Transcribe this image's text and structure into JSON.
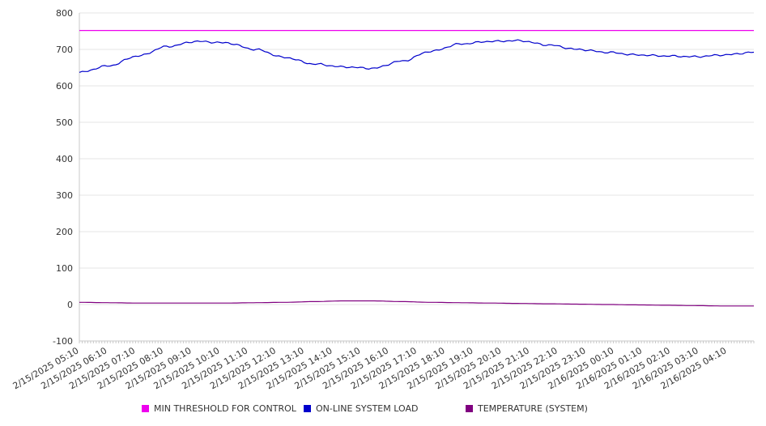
{
  "chart_data": {
    "type": "line",
    "y_ticks": [
      800,
      700,
      600,
      500,
      400,
      300,
      200,
      100,
      0,
      -100
    ],
    "ylim": [
      -100,
      800
    ],
    "grid": true,
    "legend_position": "bottom",
    "x_ticks": [
      "2/15/2025 05:10",
      "2/15/2025 06:10",
      "2/15/2025 07:10",
      "2/15/2025 08:10",
      "2/15/2025 09:10",
      "2/15/2025 10:10",
      "2/15/2025 11:10",
      "2/15/2025 12:10",
      "2/15/2025 13:10",
      "2/15/2025 14:10",
      "2/15/2025 15:10",
      "2/15/2025 16:10",
      "2/15/2025 17:10",
      "2/15/2025 18:10",
      "2/15/2025 19:10",
      "2/15/2025 20:10",
      "2/15/2025 21:10",
      "2/15/2025 22:10",
      "2/15/2025 23:10",
      "2/16/2025 00:10",
      "2/16/2025 01:10",
      "2/16/2025 02:10",
      "2/16/2025 03:10",
      "2/16/2025 04:10"
    ],
    "series": [
      {
        "name": "MIN THRESHOLD FOR CONTROL",
        "color": "#ee00ee",
        "values": [
          752,
          752,
          752,
          752,
          752,
          752,
          752,
          752,
          752,
          752,
          752,
          752,
          752,
          752,
          752,
          752,
          752,
          752,
          752,
          752,
          752,
          752,
          752,
          752
        ]
      },
      {
        "name": "ON-LINE SYSTEM LOAD",
        "color": "#0000cc",
        "values": [
          637,
          655,
          682,
          708,
          722,
          718,
          700,
          678,
          660,
          652,
          648,
          668,
          695,
          715,
          722,
          724,
          712,
          700,
          692,
          685,
          682,
          680,
          685,
          692
        ]
      },
      {
        "name": "TEMPERATURE (SYSTEM)",
        "color": "#800080",
        "values": [
          6,
          5,
          4,
          4,
          4,
          4,
          5,
          6,
          8,
          10,
          10,
          8,
          6,
          5,
          4,
          3,
          2,
          1,
          0,
          -1,
          -2,
          -3,
          -4,
          -4
        ]
      }
    ]
  }
}
